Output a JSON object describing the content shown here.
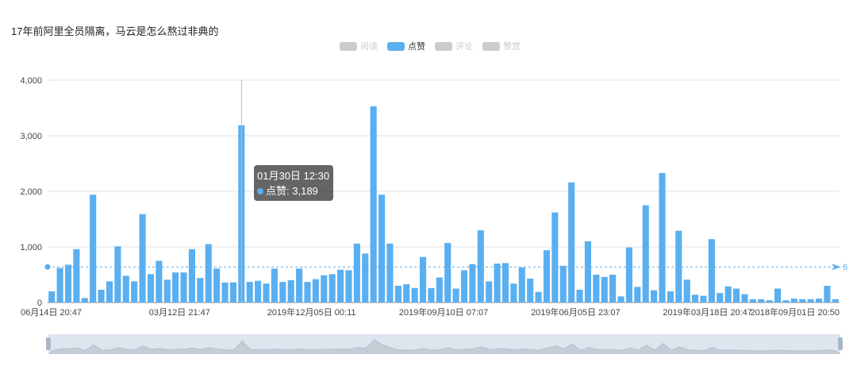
{
  "chart_data": {
    "type": "bar",
    "title": "17年前阿里全员隔离，马云是怎么熬过非典的",
    "legend": [
      {
        "name": "阅读",
        "color": "#cccccc",
        "active": false
      },
      {
        "name": "点赞",
        "color": "#5aaff0",
        "active": true
      },
      {
        "name": "评论",
        "color": "#cccccc",
        "active": false
      },
      {
        "name": "赞赏",
        "color": "#cccccc",
        "active": false
      }
    ],
    "legend_position": "top-center",
    "x_tick_labels": [
      "06月14日 20:47",
      "03月12日 21:47",
      "2019年12月05日 00:11",
      "2019年09月10日 07:07",
      "2019年06月05日 23:07",
      "2019年03月18日 20:47",
      "2018年09月01日 20:50"
    ],
    "y_ticks": [
      "0",
      "1,000",
      "2,000",
      "3,000",
      "4,000"
    ],
    "ylim": [
      0,
      4000
    ],
    "grid": true,
    "series": [
      {
        "name": "点赞",
        "color": "#5aaff0",
        "values": [
          200,
          620,
          680,
          960,
          80,
          1940,
          230,
          380,
          1010,
          480,
          380,
          1590,
          510,
          750,
          410,
          540,
          540,
          960,
          440,
          1050,
          610,
          360,
          360,
          3189,
          370,
          390,
          340,
          610,
          370,
          400,
          610,
          370,
          420,
          490,
          510,
          590,
          580,
          1060,
          880,
          3530,
          1940,
          1060,
          300,
          330,
          260,
          820,
          260,
          450,
          1070,
          250,
          580,
          690,
          1300,
          380,
          700,
          710,
          340,
          630,
          430,
          190,
          940,
          1620,
          660,
          2160,
          230,
          1100,
          500,
          460,
          500,
          110,
          990,
          280,
          1750,
          220,
          2330,
          200,
          1290,
          410,
          140,
          120,
          1140,
          170,
          290,
          250,
          150,
          60,
          60,
          40,
          250,
          40,
          70,
          60,
          60,
          70,
          300,
          60
        ]
      }
    ],
    "average_line": {
      "value": 640,
      "label": "6"
    },
    "tooltip": {
      "date": "01月30日 12:30",
      "series": "点赞",
      "value": "3,189"
    },
    "highlight_index": 23
  }
}
